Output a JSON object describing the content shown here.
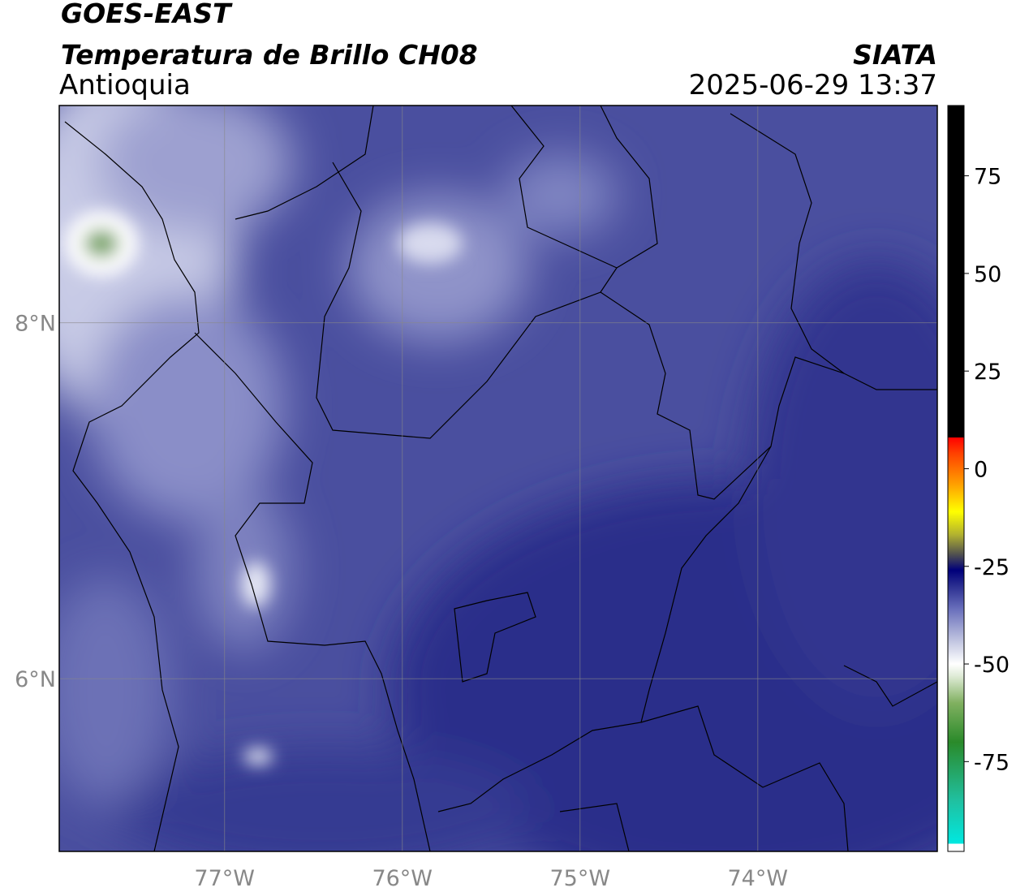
{
  "header": {
    "title": "GOES-EAST",
    "subtitle": "Temperatura de Brillo CH08",
    "source": "SIATA",
    "region": "Antioquia",
    "datetime": "2025-06-29 13:37"
  },
  "map": {
    "xlim": [
      -77.93,
      -72.99
    ],
    "ylim": [
      5.03,
      9.22
    ],
    "xticks": [
      {
        "value": -77,
        "label": "77°W"
      },
      {
        "value": -76,
        "label": "76°W"
      },
      {
        "value": -75,
        "label": "75°W"
      },
      {
        "value": -74,
        "label": "74°W"
      }
    ],
    "yticks": [
      {
        "value": 8,
        "label": "8°N"
      },
      {
        "value": 6,
        "label": "6°N"
      }
    ],
    "grid": true
  },
  "colorbar": {
    "lim": [
      -98,
      93
    ],
    "ticks": [
      75,
      50,
      25,
      0,
      -25,
      -50,
      -75
    ],
    "stops": [
      {
        "value": -98,
        "color": "#ffffff"
      },
      {
        "value": -96,
        "color": "#ffffff"
      },
      {
        "value": -96,
        "color": "#00e8e0"
      },
      {
        "value": -85,
        "color": "#20c0a0"
      },
      {
        "value": -70,
        "color": "#2a8a2a"
      },
      {
        "value": -60,
        "color": "#80b060"
      },
      {
        "value": -53,
        "color": "#e0ecd8"
      },
      {
        "value": -50,
        "color": "#ffffff"
      },
      {
        "value": -44,
        "color": "#c0c4e0"
      },
      {
        "value": -36,
        "color": "#6a70bc"
      },
      {
        "value": -30,
        "color": "#2a2e90"
      },
      {
        "value": -26,
        "color": "#00007a"
      },
      {
        "value": -22,
        "color": "#505050"
      },
      {
        "value": -17,
        "color": "#b0b030"
      },
      {
        "value": -11,
        "color": "#ffff00"
      },
      {
        "value": -4,
        "color": "#ffa000"
      },
      {
        "value": 4,
        "color": "#ff4000"
      },
      {
        "value": 8,
        "color": "#ff0000"
      },
      {
        "value": 8,
        "color": "#000000"
      },
      {
        "value": 93,
        "color": "#000000"
      }
    ]
  }
}
